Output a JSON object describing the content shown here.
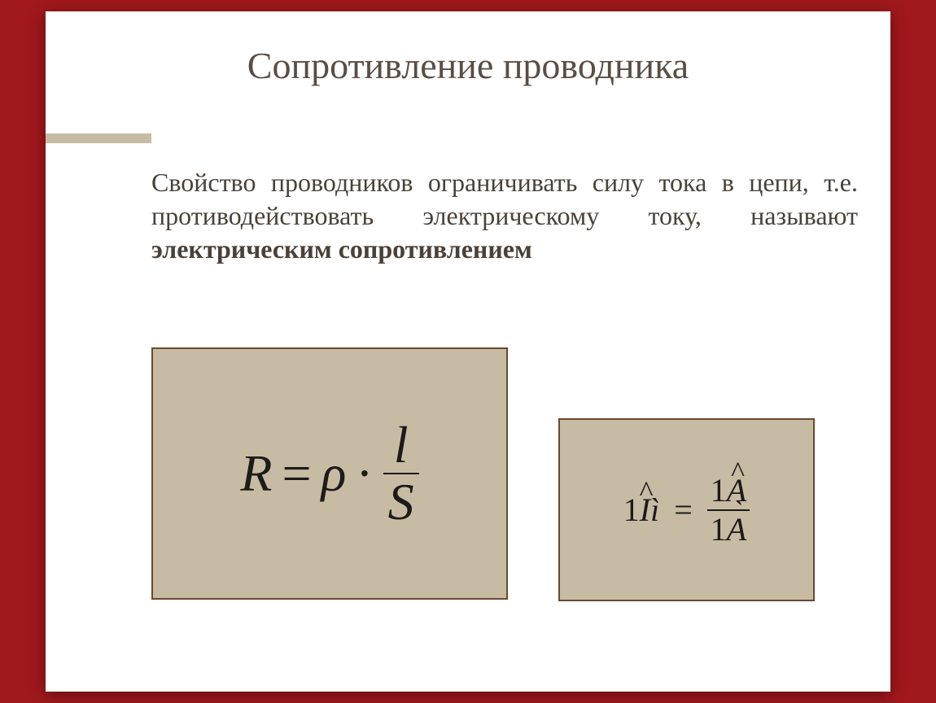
{
  "slide": {
    "title": "Сопротивление проводника",
    "definition_p1": "Свойство проводников ограничивать силу тока в цепи, т.е. противодействовать электрическому току, называют",
    "definition_bold": "электрическим сопротивлением",
    "formula": {
      "lhs": "R",
      "equals": "=",
      "rho": "ρ",
      "dot": "·",
      "numerator": "l",
      "denominator": "S"
    },
    "unit_formula": {
      "lhs_num": "1",
      "lhs_sym": "I",
      "lhs_hat": "ˆ",
      "lhs_extra": "ì",
      "equals": "=",
      "top_num": "1",
      "top_sym": "A",
      "bot_num": "1",
      "bot_sym": "A"
    }
  },
  "style": {
    "page_bg": "#a0181c",
    "slide_bg": "#ffffff",
    "box_bg": "#c8bba4",
    "box_border": "#6b4a2e",
    "title_color": "#5a4e44",
    "text_color": "#4b4138",
    "formula_color": "#1d1b19",
    "title_fontsize": 46,
    "body_fontsize": 32,
    "formula_fontsize": 64,
    "small_formula_fontsize": 40
  }
}
